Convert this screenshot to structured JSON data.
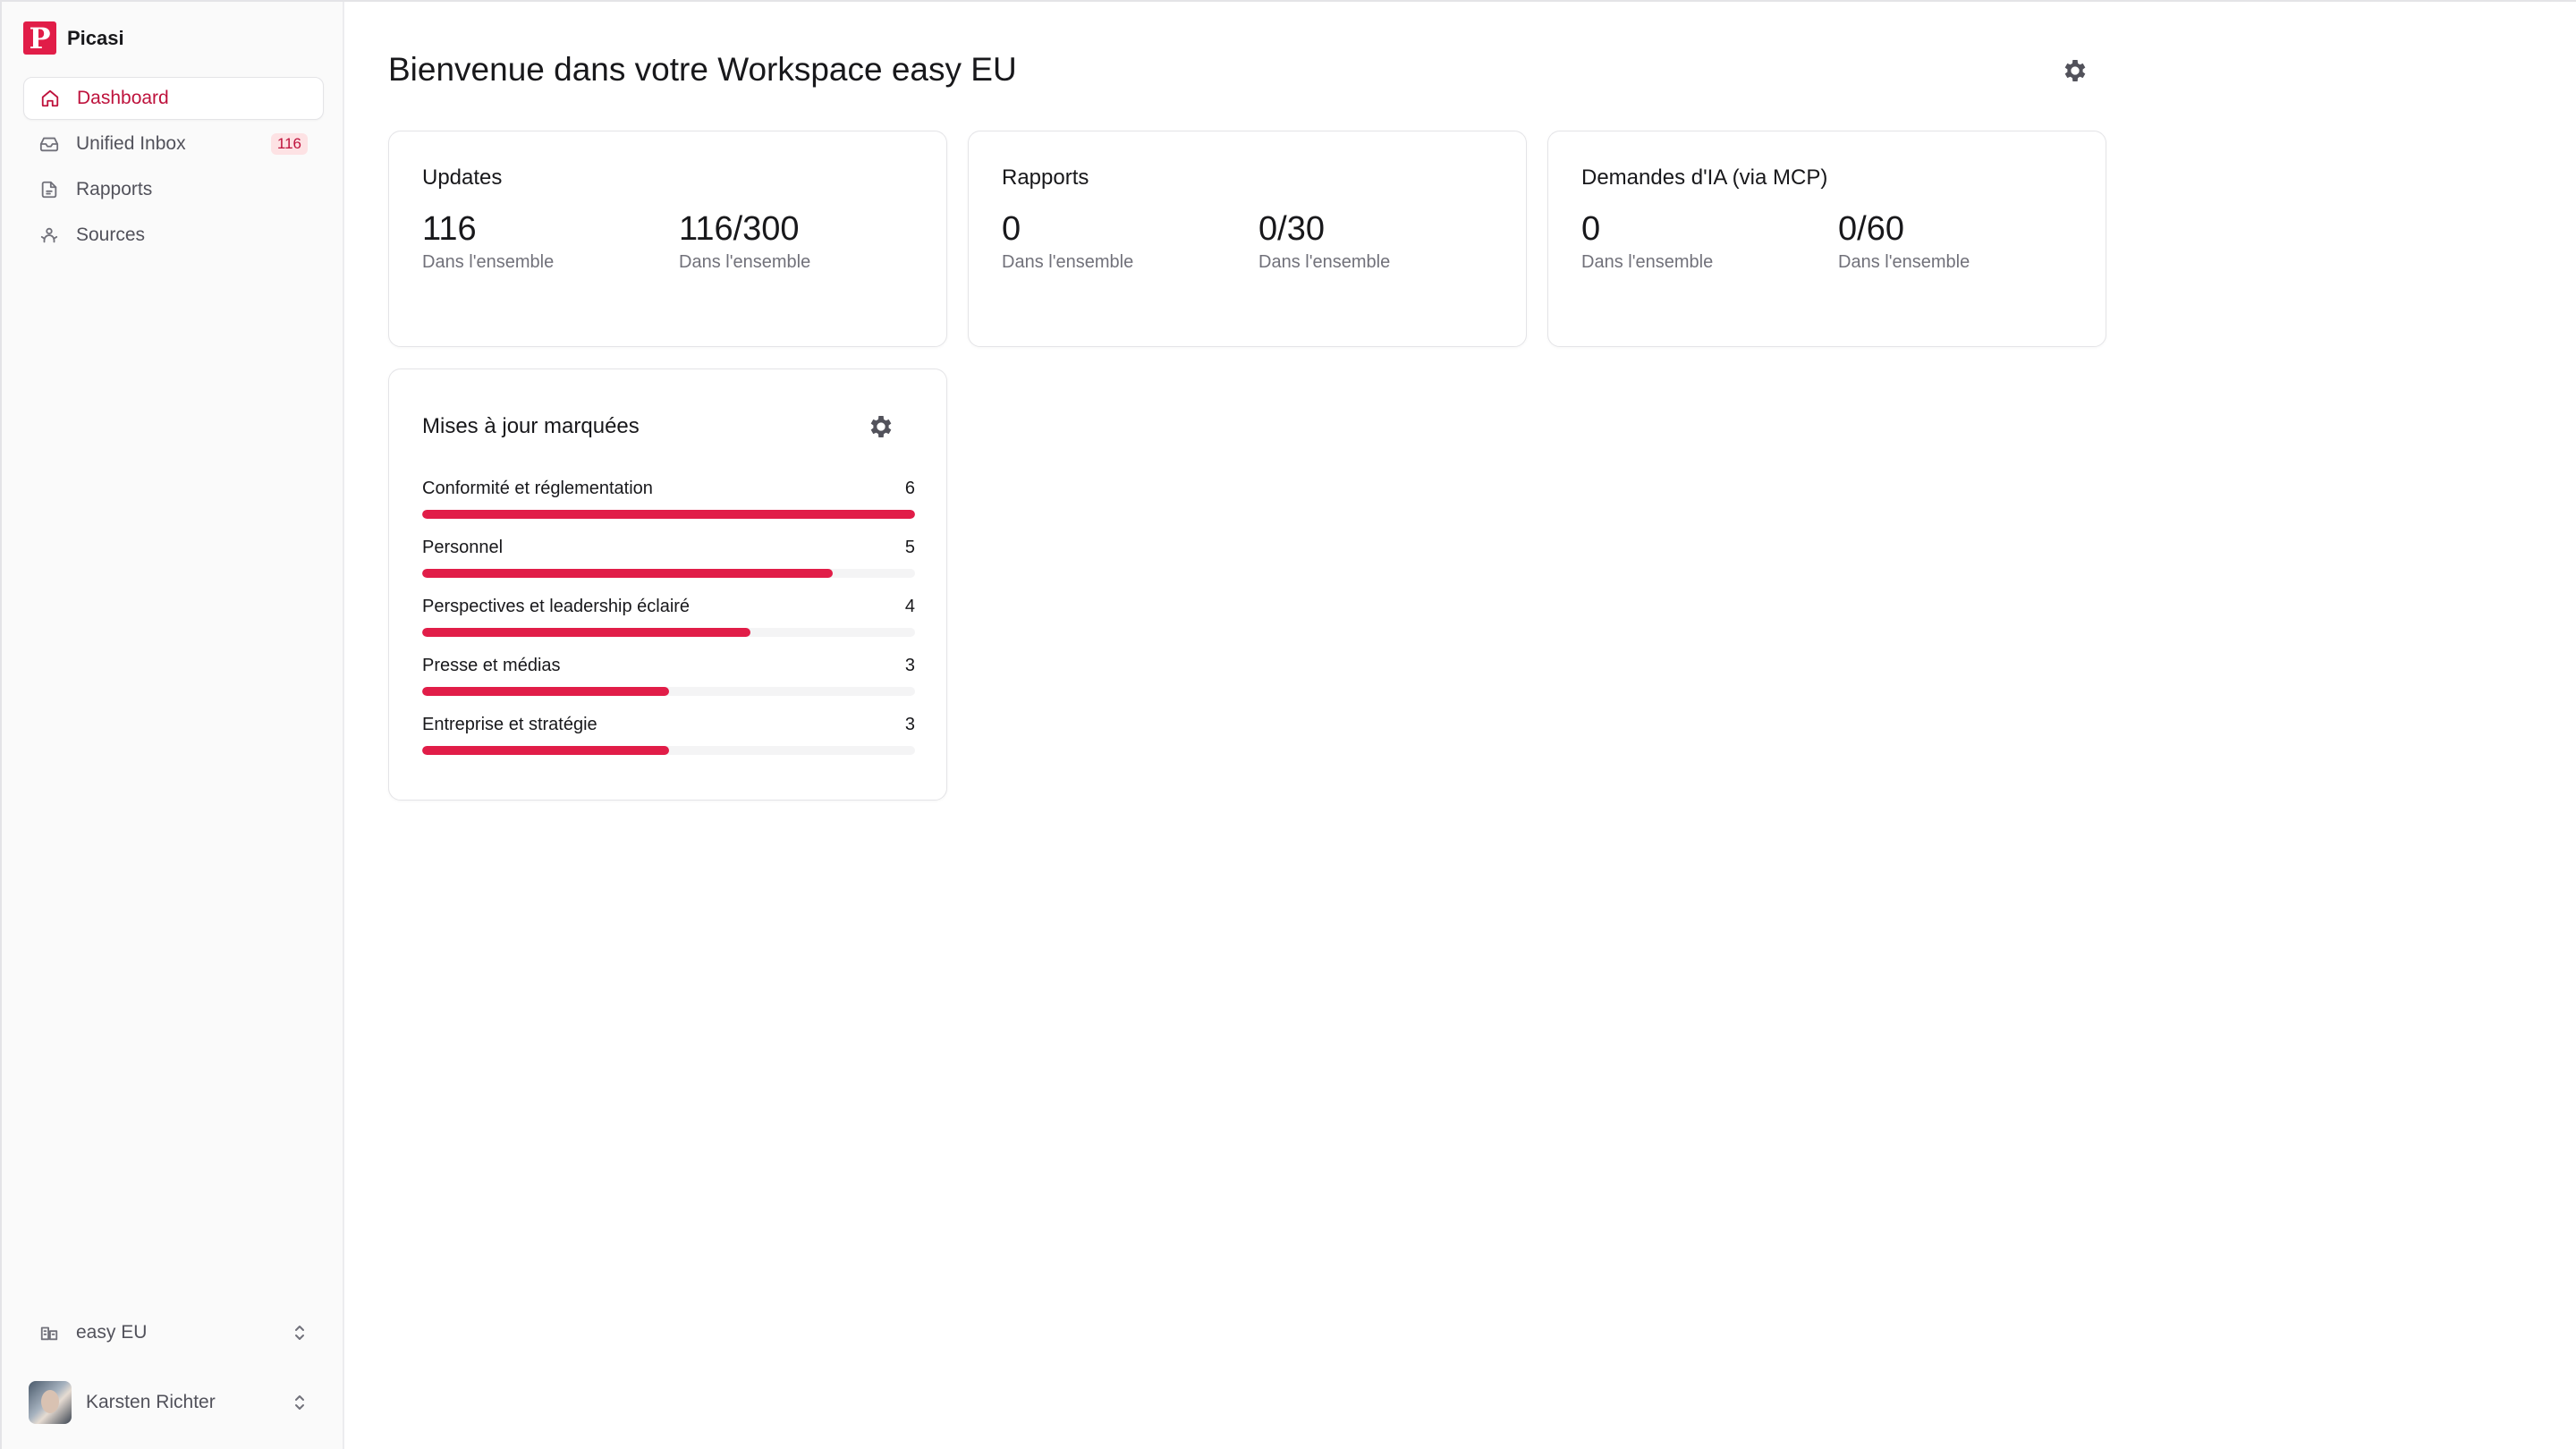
{
  "brand": {
    "name": "Picasi",
    "logo_letter": "P",
    "color": "#e11d48"
  },
  "sidebar": {
    "items": [
      {
        "label": "Dashboard",
        "icon": "home-icon",
        "active": true
      },
      {
        "label": "Unified Inbox",
        "icon": "inbox-icon",
        "badge": "116"
      },
      {
        "label": "Rapports",
        "icon": "document-icon"
      },
      {
        "label": "Sources",
        "icon": "sources-icon"
      }
    ],
    "workspace": {
      "label": "easy EU",
      "icon": "building-icon"
    },
    "user": {
      "name": "Karsten Richter"
    }
  },
  "main": {
    "title": "Bienvenue dans votre Workspace easy EU",
    "cards": [
      {
        "title": "Updates",
        "stats": [
          {
            "value": "116",
            "label": "Dans l'ensemble"
          },
          {
            "value": "116/300",
            "label": "Dans l'ensemble"
          }
        ]
      },
      {
        "title": "Rapports",
        "stats": [
          {
            "value": "0",
            "label": "Dans l'ensemble"
          },
          {
            "value": "0/30",
            "label": "Dans l'ensemble"
          }
        ]
      },
      {
        "title": "Demandes d'IA (via MCP)",
        "stats": [
          {
            "value": "0",
            "label": "Dans l'ensemble"
          },
          {
            "value": "0/60",
            "label": "Dans l'ensemble"
          }
        ]
      }
    ],
    "tagged": {
      "title": "Mises à jour marquées",
      "max": 6,
      "rows": [
        {
          "label": "Conformité et réglementation",
          "value": 6
        },
        {
          "label": "Personnel",
          "value": 5
        },
        {
          "label": "Perspectives et leadership éclairé",
          "value": 4
        },
        {
          "label": "Presse et médias",
          "value": 3
        },
        {
          "label": "Entreprise et stratégie",
          "value": 3
        }
      ]
    }
  },
  "colors": {
    "accent": "#e11d48",
    "accent_text": "#be123c",
    "badge_bg": "#fde2e4"
  }
}
